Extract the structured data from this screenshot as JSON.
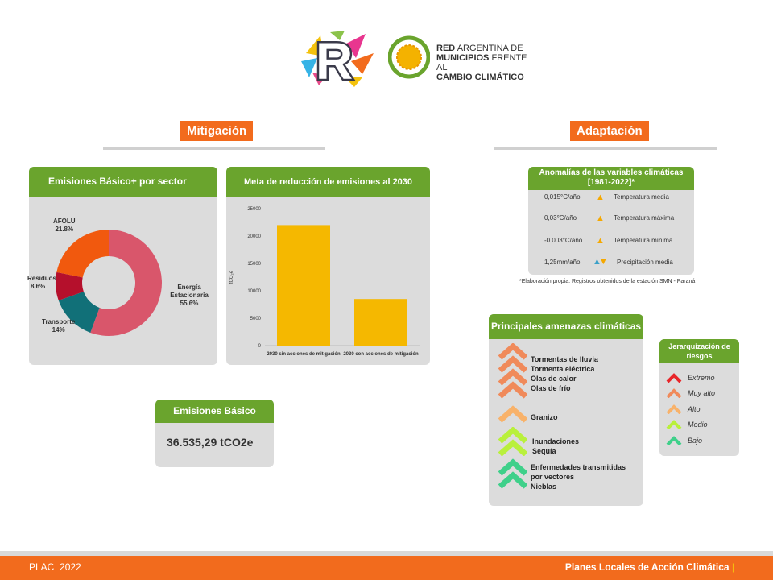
{
  "header": {
    "org_name": {
      "line1_bold": "RED",
      "line1": "ARGENTINA DE",
      "line2_bold": "MUNICIPIOS",
      "line2": "FRENTE AL",
      "line3": "CAMBIO CLIMÁTICO"
    },
    "logo_letter": "R"
  },
  "sections": {
    "mitigacion": "Mitigación",
    "adaptacion": "Adaptación"
  },
  "donut_card": {
    "title": "Emisiones Básico+ por sector",
    "labels": [
      {
        "name": "Energía Estacionaria",
        "pct": "55.6%"
      },
      {
        "name": "Transporte",
        "pct": "14%"
      },
      {
        "name": "Residuos",
        "pct": "8.6%"
      },
      {
        "name": "AFOLU",
        "pct": "21.8%"
      }
    ]
  },
  "bar_card": {
    "title": "Meta de reducción de emisiones al 2030"
  },
  "chart_data": [
    {
      "type": "pie",
      "title": "Emisiones Básico+ por sector",
      "categories": [
        "Energía Estacionaria",
        "Transporte",
        "Residuos",
        "AFOLU"
      ],
      "values": [
        55.6,
        14,
        8.6,
        21.8
      ],
      "colors": [
        "#d9566b",
        "#117078",
        "#b5102c",
        "#f1590e"
      ]
    },
    {
      "type": "bar",
      "title": "Meta de reducción de emisiones al 2030",
      "categories": [
        "2030 sin acciones de mitigación",
        "2030 con acciones de mitigación"
      ],
      "values": [
        22000,
        8500
      ],
      "ylabel": "tCO₂e",
      "ylim": [
        0,
        25000
      ],
      "yticks": [
        "0",
        "5000",
        "10000",
        "15000",
        "20000",
        "25000"
      ],
      "color": "#f5b800"
    }
  ],
  "emisiones_basico": {
    "title": "Emisiones Básico",
    "value": "36.535,29 tCO2e"
  },
  "anomalias": {
    "title_line1": "Anomalías de las variables climáticas",
    "title_line2": "[1981-2022]*",
    "rows": [
      {
        "value": "0,015°C/año",
        "label": "Temperatura media"
      },
      {
        "value": "0,03°C/año",
        "label": "Temperatura máxima"
      },
      {
        "value": "-0.003°C/año",
        "label": "Temperatura mínima"
      },
      {
        "value": "1,25mm/año",
        "label": "Precipitación media"
      }
    ],
    "footnote": "*Elaboración propia. Registros obtenidos de la estación SMN - Paraná"
  },
  "amenazas": {
    "title": "Principales amenazas climáticas",
    "groups": [
      {
        "level": "Muy alto",
        "items": [
          "Tormentas de lluvia",
          "Tormenta eléctrica",
          "Olas de calor",
          "Olas de frío"
        ]
      },
      {
        "level": "Alto",
        "items": [
          "Granizo"
        ]
      },
      {
        "level": "Medio",
        "items": [
          "Inundaciones",
          "Sequía"
        ]
      },
      {
        "level": "Bajo",
        "items": [
          "Enfermedades transmitidas",
          "por vectores",
          "Nieblas"
        ]
      }
    ]
  },
  "jerarquia": {
    "title_line1": "Jerarquización de",
    "title_line2": "riesgos",
    "levels": [
      {
        "label": "Extremo",
        "color": "#e8262a"
      },
      {
        "label": "Muy alto",
        "color": "#f08a5a"
      },
      {
        "label": "Alto",
        "color": "#f8b26a"
      },
      {
        "label": "Medio",
        "color": "#b9f03c"
      },
      {
        "label": "Bajo",
        "color": "#3fd08a"
      }
    ]
  },
  "footer": {
    "left": "PLAC  2022",
    "right": "Planes Locales de Acción Climática"
  }
}
